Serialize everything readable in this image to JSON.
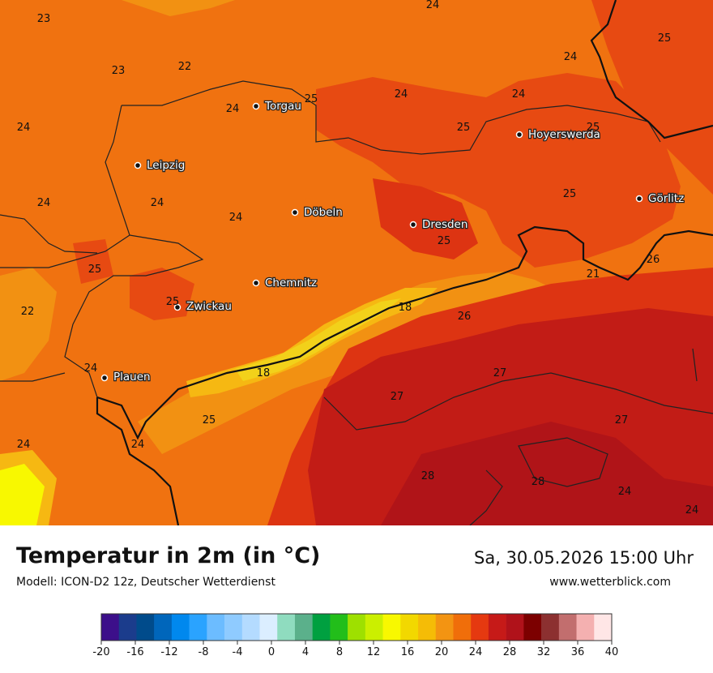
{
  "header": {
    "title": "Temperatur in 2m (in °C)",
    "model": "Modell: ICON-D2 12z, Deutscher Wetterdienst",
    "datetime": "Sa, 30.05.2026 15:00 Uhr",
    "website": "www.wetterblick.com"
  },
  "cities": [
    {
      "name": "Torgau"
    },
    {
      "name": "Hoyerswerda"
    },
    {
      "name": "Leipzig"
    },
    {
      "name": "Görlitz"
    },
    {
      "name": "Döbeln"
    },
    {
      "name": "Dresden"
    },
    {
      "name": "Chemnitz"
    },
    {
      "name": "Zwickau"
    },
    {
      "name": "Plauen"
    }
  ],
  "temperature_labels": [
    "24",
    "23",
    "25",
    "23",
    "22",
    "24",
    "24",
    "24",
    "25",
    "24",
    "25",
    "25",
    "24",
    "24",
    "24",
    "24",
    "25",
    "25",
    "21",
    "26",
    "25",
    "22",
    "25",
    "18",
    "26",
    "24",
    "18",
    "27",
    "27",
    "25",
    "24",
    "27",
    "28",
    "28",
    "24",
    "24"
  ],
  "legend": {
    "ticks": [
      "-20",
      "-16",
      "-12",
      "-8",
      "-4",
      "0",
      "4",
      "8",
      "12",
      "16",
      "20",
      "24",
      "28",
      "32",
      "36",
      "40"
    ],
    "colors": [
      "#3c0f8a",
      "#1b3c8c",
      "#004b8b",
      "#0066bb",
      "#0088ee",
      "#2aa3ff",
      "#6cbcff",
      "#8fcbff",
      "#b4dbff",
      "#dbeeff",
      "#8fdcbf",
      "#5bb08b",
      "#00a040",
      "#22be1a",
      "#9ee000",
      "#cbef00",
      "#f8f800",
      "#f2d800",
      "#f5bc06",
      "#f39412",
      "#f06e0a",
      "#e53910",
      "#c61a18",
      "#b0121a",
      "#7c0000",
      "#8c3030",
      "#c26e6e",
      "#f4b0b0",
      "#ffe6e6"
    ]
  },
  "map_colors": {
    "c18": "#f2d11a",
    "c20": "#f6b812",
    "c22": "#f29112",
    "c24": "#f07210",
    "c25": "#e74a12",
    "c26": "#dd3412",
    "c27": "#c21c16",
    "c28": "#b01418",
    "cYellow": "#f8f800"
  }
}
